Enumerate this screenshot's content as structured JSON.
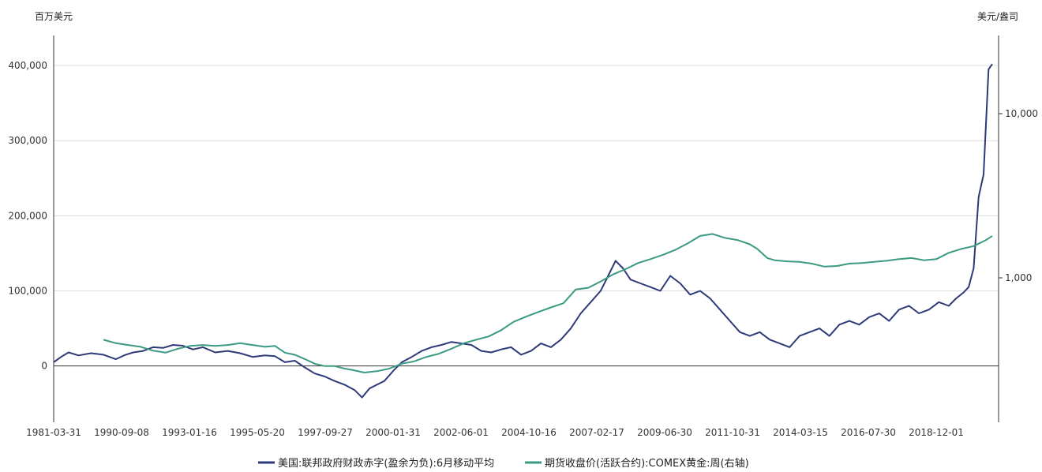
{
  "chart_data": {
    "type": "line",
    "left_unit": "百万美元",
    "right_unit": "美元/盎司",
    "x_tick_labels": [
      "1981-03-31",
      "1990-09-08",
      "1993-01-16",
      "1995-05-20",
      "1997-09-27",
      "2000-01-31",
      "2002-06-01",
      "2004-10-16",
      "2007-02-17",
      "2009-06-30",
      "2011-10-31",
      "2014-03-15",
      "2016-07-30",
      "2018-12-01"
    ],
    "y_left_ticks": [
      0,
      100000,
      200000,
      300000,
      400000
    ],
    "y_left_tick_labels": [
      "0",
      "100,000",
      "200,000",
      "300,000",
      "400,000"
    ],
    "y_left_range": [
      -75000,
      440000
    ],
    "y_right_ticks": [
      1000,
      10000
    ],
    "y_right_tick_labels": [
      "1,000",
      "10,000"
    ],
    "y_right_scale": "log",
    "legend_position": "bottom",
    "series": [
      {
        "name": "美国:联邦政府财政赤字(盈余为负):6月移动平均",
        "axis": "left",
        "color": "#2e3a78",
        "points": [
          [
            0,
            5000
          ],
          [
            0.3,
            12000
          ],
          [
            0.6,
            18000
          ],
          [
            1.0,
            14000
          ],
          [
            1.5,
            17000
          ],
          [
            2.0,
            15000
          ],
          [
            2.5,
            9000
          ],
          [
            2.9,
            15000
          ],
          [
            3.2,
            18000
          ],
          [
            3.6,
            20000
          ],
          [
            4.0,
            25000
          ],
          [
            4.4,
            24000
          ],
          [
            4.8,
            28000
          ],
          [
            5.2,
            27000
          ],
          [
            5.6,
            22000
          ],
          [
            6.0,
            25000
          ],
          [
            6.5,
            18000
          ],
          [
            7.0,
            20000
          ],
          [
            7.5,
            17000
          ],
          [
            8.0,
            12000
          ],
          [
            8.5,
            14000
          ],
          [
            8.9,
            13000
          ],
          [
            9.3,
            5000
          ],
          [
            9.7,
            7000
          ],
          [
            10.1,
            -2000
          ],
          [
            10.5,
            -10000
          ],
          [
            10.9,
            -14000
          ],
          [
            11.3,
            -20000
          ],
          [
            11.7,
            -25000
          ],
          [
            12.1,
            -32000
          ],
          [
            12.4,
            -42000
          ],
          [
            12.7,
            -30000
          ],
          [
            13.0,
            -25000
          ],
          [
            13.3,
            -20000
          ],
          [
            13.7,
            -5000
          ],
          [
            14.0,
            5000
          ],
          [
            14.4,
            12000
          ],
          [
            14.8,
            20000
          ],
          [
            15.2,
            25000
          ],
          [
            15.6,
            28000
          ],
          [
            16.0,
            32000
          ],
          [
            16.4,
            30000
          ],
          [
            16.8,
            28000
          ],
          [
            17.2,
            20000
          ],
          [
            17.6,
            18000
          ],
          [
            18.0,
            22000
          ],
          [
            18.4,
            25000
          ],
          [
            18.8,
            15000
          ],
          [
            19.2,
            20000
          ],
          [
            19.6,
            30000
          ],
          [
            20.0,
            25000
          ],
          [
            20.4,
            35000
          ],
          [
            20.8,
            50000
          ],
          [
            21.2,
            70000
          ],
          [
            21.6,
            85000
          ],
          [
            22.0,
            100000
          ],
          [
            22.3,
            120000
          ],
          [
            22.6,
            140000
          ],
          [
            22.9,
            130000
          ],
          [
            23.2,
            115000
          ],
          [
            23.6,
            110000
          ],
          [
            24.0,
            105000
          ],
          [
            24.4,
            100000
          ],
          [
            24.8,
            120000
          ],
          [
            25.2,
            110000
          ],
          [
            25.6,
            95000
          ],
          [
            26.0,
            100000
          ],
          [
            26.4,
            90000
          ],
          [
            26.8,
            75000
          ],
          [
            27.2,
            60000
          ],
          [
            27.6,
            45000
          ],
          [
            28.0,
            40000
          ],
          [
            28.4,
            45000
          ],
          [
            28.8,
            35000
          ],
          [
            29.2,
            30000
          ],
          [
            29.6,
            25000
          ],
          [
            30.0,
            40000
          ],
          [
            30.4,
            45000
          ],
          [
            30.8,
            50000
          ],
          [
            31.2,
            40000
          ],
          [
            31.6,
            55000
          ],
          [
            32.0,
            60000
          ],
          [
            32.4,
            55000
          ],
          [
            32.8,
            65000
          ],
          [
            33.2,
            70000
          ],
          [
            33.6,
            60000
          ],
          [
            34.0,
            75000
          ],
          [
            34.4,
            80000
          ],
          [
            34.8,
            70000
          ],
          [
            35.2,
            75000
          ],
          [
            35.6,
            85000
          ],
          [
            36.0,
            80000
          ],
          [
            36.3,
            90000
          ],
          [
            36.6,
            98000
          ],
          [
            36.8,
            105000
          ],
          [
            37.0,
            130000
          ],
          [
            37.2,
            225000
          ],
          [
            37.4,
            255000
          ],
          [
            37.6,
            395000
          ],
          [
            37.75,
            402000
          ]
        ]
      },
      {
        "name": "期货收盘价(活跃合约):COMEX黄金:周(右轴)",
        "axis": "right",
        "color": "#3a9a82",
        "points": [
          [
            2.0,
            420
          ],
          [
            2.5,
            400
          ],
          [
            3.0,
            390
          ],
          [
            3.5,
            380
          ],
          [
            4.0,
            360
          ],
          [
            4.5,
            350
          ],
          [
            5.0,
            370
          ],
          [
            5.5,
            385
          ],
          [
            6.0,
            390
          ],
          [
            6.5,
            385
          ],
          [
            7.0,
            390
          ],
          [
            7.5,
            400
          ],
          [
            8.0,
            390
          ],
          [
            8.5,
            380
          ],
          [
            8.9,
            385
          ],
          [
            9.3,
            350
          ],
          [
            9.7,
            340
          ],
          [
            10.1,
            320
          ],
          [
            10.5,
            300
          ],
          [
            10.9,
            290
          ],
          [
            11.3,
            290
          ],
          [
            11.7,
            280
          ],
          [
            12.0,
            275
          ],
          [
            12.5,
            265
          ],
          [
            13.0,
            270
          ],
          [
            13.5,
            280
          ],
          [
            14.0,
            300
          ],
          [
            14.5,
            310
          ],
          [
            15.0,
            330
          ],
          [
            15.5,
            345
          ],
          [
            16.0,
            370
          ],
          [
            16.5,
            400
          ],
          [
            17.0,
            420
          ],
          [
            17.5,
            440
          ],
          [
            18.0,
            480
          ],
          [
            18.5,
            540
          ],
          [
            19.0,
            580
          ],
          [
            19.5,
            620
          ],
          [
            20.0,
            660
          ],
          [
            20.5,
            700
          ],
          [
            21.0,
            850
          ],
          [
            21.5,
            870
          ],
          [
            22.0,
            950
          ],
          [
            22.5,
            1050
          ],
          [
            23.0,
            1130
          ],
          [
            23.5,
            1230
          ],
          [
            24.0,
            1300
          ],
          [
            24.5,
            1380
          ],
          [
            25.0,
            1480
          ],
          [
            25.5,
            1620
          ],
          [
            26.0,
            1800
          ],
          [
            26.5,
            1850
          ],
          [
            27.0,
            1750
          ],
          [
            27.5,
            1700
          ],
          [
            28.0,
            1600
          ],
          [
            28.3,
            1500
          ],
          [
            28.7,
            1320
          ],
          [
            29.0,
            1280
          ],
          [
            29.5,
            1260
          ],
          [
            30.0,
            1250
          ],
          [
            30.5,
            1220
          ],
          [
            31.0,
            1170
          ],
          [
            31.5,
            1180
          ],
          [
            32.0,
            1220
          ],
          [
            32.5,
            1230
          ],
          [
            33.0,
            1250
          ],
          [
            33.5,
            1270
          ],
          [
            34.0,
            1300
          ],
          [
            34.5,
            1320
          ],
          [
            35.0,
            1280
          ],
          [
            35.5,
            1300
          ],
          [
            36.0,
            1420
          ],
          [
            36.5,
            1500
          ],
          [
            37.0,
            1560
          ],
          [
            37.5,
            1700
          ],
          [
            37.75,
            1800
          ]
        ]
      }
    ]
  }
}
